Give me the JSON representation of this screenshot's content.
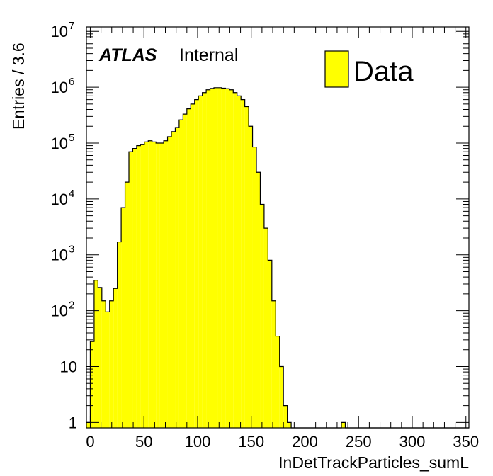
{
  "chart_data": {
    "type": "bar",
    "histogram": true,
    "ylabel": "Entries / 3.6",
    "xlabel": "InDetTrackParticles_sumL",
    "atlas_label": "ATLAS",
    "atlas_status": "Internal",
    "xlim": [
      -3.6,
      352.8
    ],
    "ylim": [
      0.8,
      12000000
    ],
    "yscale": "log",
    "bin_width": 3.6,
    "x_ticks": [
      0,
      50,
      100,
      150,
      200,
      250,
      300,
      350
    ],
    "y_ticks": [
      {
        "value": 1,
        "base": "1",
        "exp": ""
      },
      {
        "value": 10,
        "base": "10",
        "exp": ""
      },
      {
        "value": 100,
        "base": "10",
        "exp": "2"
      },
      {
        "value": 1000,
        "base": "10",
        "exp": "3"
      },
      {
        "value": 10000,
        "base": "10",
        "exp": "4"
      },
      {
        "value": 100000,
        "base": "10",
        "exp": "5"
      },
      {
        "value": 1000000,
        "base": "10",
        "exp": "6"
      },
      {
        "value": 10000000,
        "base": "10",
        "exp": "7"
      }
    ],
    "fill_color": "#ffff00",
    "line_color": "#000000",
    "series": [
      {
        "name": "Data",
        "bin_start": -3.6,
        "values": [
          1,
          28,
          350,
          260,
          150,
          95,
          150,
          250,
          1700,
          7000,
          20000,
          70000,
          80000,
          90000,
          95000,
          105000,
          110000,
          105000,
          100000,
          100000,
          110000,
          130000,
          160000,
          190000,
          260000,
          330000,
          410000,
          500000,
          600000,
          700000,
          800000,
          900000,
          950000,
          980000,
          980000,
          960000,
          940000,
          900000,
          800000,
          700000,
          600000,
          450000,
          200000,
          85000,
          30000,
          8000,
          3000,
          800,
          150,
          35,
          10,
          2,
          1,
          0,
          0,
          0,
          0,
          0,
          0,
          0,
          0,
          0,
          0,
          0,
          0,
          0,
          1,
          0,
          0,
          0,
          0,
          0,
          0,
          0,
          0,
          0,
          0,
          0,
          0,
          0,
          0,
          0,
          0,
          0,
          0,
          0,
          0,
          0,
          0,
          0,
          0,
          0,
          0,
          0,
          0,
          0,
          0,
          0,
          0
        ]
      }
    ],
    "legend": {
      "position": "top-right",
      "entries": [
        "Data"
      ]
    }
  }
}
